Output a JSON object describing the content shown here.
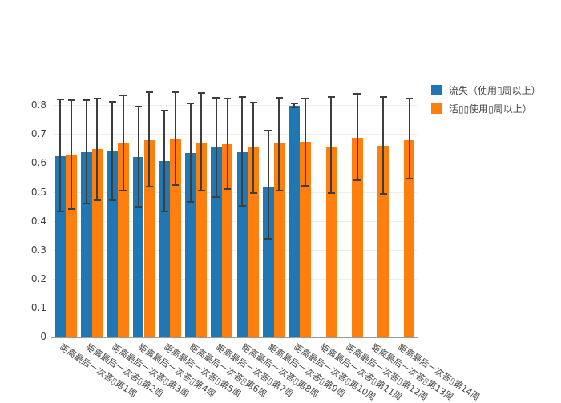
{
  "chart_data": {
    "type": "bar",
    "title": "",
    "xlabel": "",
    "ylabel": "",
    "grid": true,
    "legend_position": "top-right",
    "error_bar_color": "#3d3d3d",
    "axis_line_color": "#9a9a9a",
    "ylim": [
      0,
      0.85
    ],
    "yticks": [
      0,
      0.1,
      0.2,
      0.3,
      0.4,
      0.5,
      0.6,
      0.7,
      0.8
    ],
    "ytick_labels": [
      "0",
      "0.1",
      "0.2",
      "0.3",
      "0.4",
      "0.5",
      "0.6",
      "0.7",
      "0.8"
    ],
    "categories": [
      "距离最后一次答▯第1周",
      "距离最后一次答▯第2周",
      "距离最后一次答▯第3周",
      "距离最后一次答▯第4周",
      "距离最后一次答▯第5周",
      "距离最后一次答▯第6周",
      "距离最后一次答▯第7周",
      "距离最后一次答▯第8周",
      "距离最后一次答▯第9周",
      "距离最后一次答▯第10周",
      "距离最后一次答▯第11周",
      "距离最后一次答▯第12周",
      "距离最后一次答▯第13周",
      "距离最后一次答▯第14周"
    ],
    "series": [
      {
        "name": "流失（使用▯周以上）",
        "key": "churn",
        "color": "#1f77b4",
        "values": [
          0.622,
          0.637,
          0.641,
          0.62,
          0.607,
          0.634,
          0.653,
          0.637,
          0.519,
          0.799,
          null,
          null,
          null,
          null
        ],
        "error_high": [
          0.821,
          0.817,
          0.813,
          0.796,
          0.782,
          0.805,
          0.826,
          0.828,
          0.711,
          0.805,
          null,
          null,
          null,
          null
        ],
        "error_low": [
          0.432,
          0.461,
          0.472,
          0.448,
          0.431,
          0.464,
          0.482,
          0.452,
          0.337,
          0.792,
          null,
          null,
          null,
          null
        ]
      },
      {
        "name": "活▯▯使用▯周以上）",
        "key": "active",
        "color": "#ff7f0e",
        "values": [
          0.626,
          0.647,
          0.668,
          0.679,
          0.685,
          0.671,
          0.665,
          0.654,
          0.669,
          0.672,
          0.655,
          0.688,
          0.66,
          0.68
        ],
        "error_high": [
          0.816,
          0.823,
          0.835,
          0.845,
          0.845,
          0.842,
          0.822,
          0.81,
          0.826,
          0.824,
          0.829,
          0.84,
          0.829,
          0.824
        ],
        "error_low": [
          0.441,
          0.472,
          0.505,
          0.517,
          0.524,
          0.505,
          0.51,
          0.497,
          0.503,
          0.522,
          0.496,
          0.54,
          0.494,
          0.545
        ]
      }
    ]
  }
}
